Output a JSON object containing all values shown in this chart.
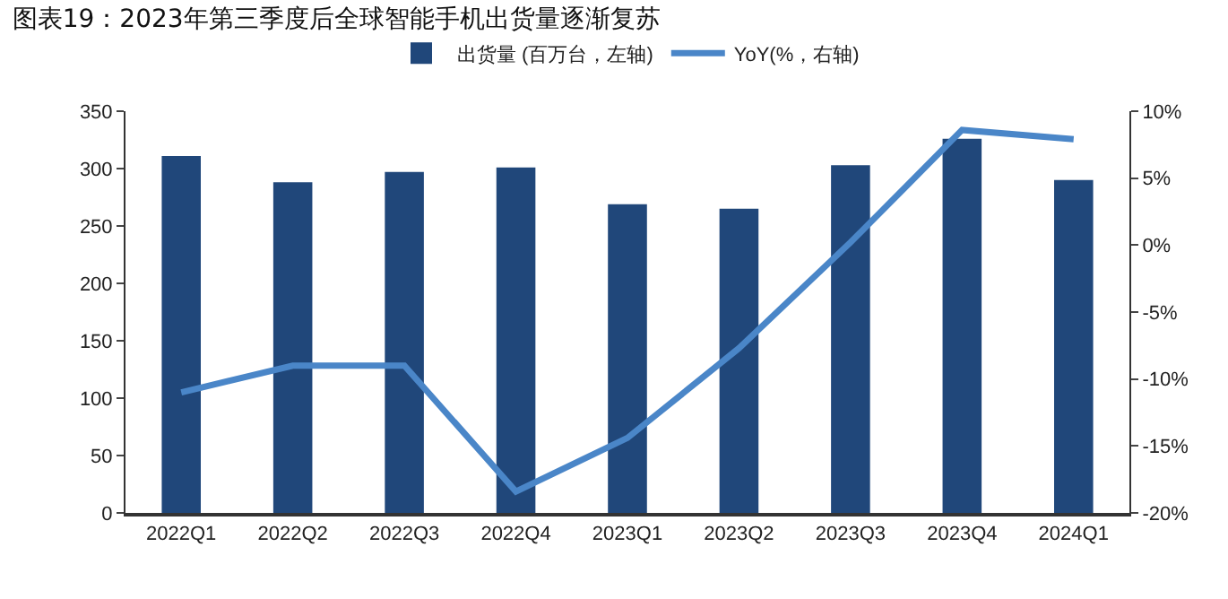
{
  "chart_data": {
    "type": "bar",
    "title": "图表19：2023年第三季度后全球智能手机出货量逐渐复苏",
    "categories": [
      "2022Q1",
      "2022Q2",
      "2022Q3",
      "2022Q4",
      "2023Q1",
      "2023Q2",
      "2023Q3",
      "2023Q4",
      "2024Q1"
    ],
    "series": [
      {
        "name": "出货量 (百万台，左轴)",
        "color": "#20477a",
        "values": [
          311,
          288,
          297,
          301,
          269,
          265,
          303,
          326,
          290
        ]
      },
      {
        "name": "YoY(%，右轴)",
        "type": "line",
        "axis": "y2",
        "color": "#4a86c8",
        "values": [
          -11,
          -9,
          -9,
          -18.4,
          -14.4,
          -7.7,
          0.2,
          8.6,
          7.9
        ]
      }
    ],
    "ylim": [
      0,
      350
    ],
    "yticks": [
      0,
      50,
      100,
      150,
      200,
      250,
      300,
      350
    ],
    "y2lim": [
      -20,
      10
    ],
    "y2ticks": [
      {
        "value": -20,
        "label": "-20%"
      },
      {
        "value": -15,
        "label": "-15%"
      },
      {
        "value": -10,
        "label": "-10%"
      },
      {
        "value": -5,
        "label": "-5%"
      },
      {
        "value": 0,
        "label": "0%"
      },
      {
        "value": 5,
        "label": "5%"
      },
      {
        "value": 10,
        "label": "10%"
      }
    ],
    "grid": false,
    "legend": "top",
    "marker": "none",
    "line_style": "solid"
  }
}
